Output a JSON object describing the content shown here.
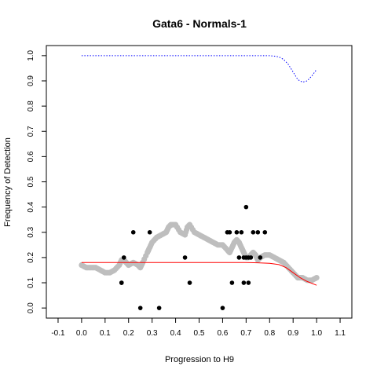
{
  "chart_data": {
    "type": "scatter",
    "title": "Gata6 - Normals-1",
    "xlabel": "Progression to H9",
    "ylabel": "Frequency of Detection",
    "xlim": [
      -0.15,
      1.15
    ],
    "ylim": [
      -0.04,
      1.04
    ],
    "x_ticks": [
      -0.1,
      0.0,
      0.1,
      0.2,
      0.3,
      0.4,
      0.5,
      0.6,
      0.7,
      0.8,
      0.9,
      1.0,
      1.1
    ],
    "x_tick_labels": [
      "-0.1",
      "0.0",
      "0.1",
      "0.2",
      "0.3",
      "0.4",
      "0.5",
      "0.6",
      "0.7",
      "0.8",
      "0.9",
      "1.0",
      "1.1"
    ],
    "y_ticks": [
      0.0,
      0.1,
      0.2,
      0.3,
      0.4,
      0.5,
      0.6,
      0.7,
      0.8,
      0.9,
      1.0
    ],
    "y_tick_labels": [
      "0.0",
      "0.1",
      "0.2",
      "0.3",
      "0.4",
      "0.5",
      "0.6",
      "0.7",
      "0.8",
      "0.9",
      "1.0"
    ],
    "grid": false,
    "colors": {
      "observed": "#000000",
      "smoothed": "#bebebe",
      "fit": "#ff0000",
      "upper": "#0000ff"
    },
    "series": [
      {
        "kind": "points",
        "color": "#000000",
        "x": [
          0.17,
          0.17,
          0.18,
          0.22,
          0.25,
          0.29,
          0.33,
          0.44,
          0.46,
          0.6,
          0.62,
          0.63,
          0.64,
          0.66,
          0.67,
          0.68,
          0.69,
          0.69,
          0.7,
          0.7,
          0.71,
          0.71,
          0.72,
          0.73,
          0.75,
          0.76,
          0.78
        ],
        "y": [
          0.1,
          0.1,
          0.2,
          0.3,
          0.0,
          0.3,
          0.0,
          0.2,
          0.1,
          0.0,
          0.3,
          0.3,
          0.1,
          0.3,
          0.2,
          0.3,
          0.1,
          0.2,
          0.2,
          0.4,
          0.1,
          0.2,
          0.2,
          0.3,
          0.3,
          0.2,
          0.3
        ]
      },
      {
        "kind": "smoothed",
        "color": "#bebebe",
        "x": [
          0.0,
          0.02,
          0.04,
          0.06,
          0.08,
          0.1,
          0.12,
          0.14,
          0.16,
          0.17,
          0.18,
          0.19,
          0.2,
          0.22,
          0.24,
          0.25,
          0.26,
          0.28,
          0.29,
          0.3,
          0.32,
          0.34,
          0.36,
          0.37,
          0.38,
          0.4,
          0.42,
          0.44,
          0.45,
          0.46,
          0.48,
          0.5,
          0.52,
          0.54,
          0.56,
          0.58,
          0.6,
          0.62,
          0.63,
          0.64,
          0.65,
          0.66,
          0.67,
          0.68,
          0.69,
          0.7,
          0.71,
          0.72,
          0.73,
          0.74,
          0.75,
          0.76,
          0.78,
          0.8,
          0.82,
          0.84,
          0.86,
          0.88,
          0.9,
          0.92,
          0.94,
          0.96,
          0.98,
          1.0
        ],
        "y": [
          0.17,
          0.16,
          0.16,
          0.16,
          0.15,
          0.14,
          0.14,
          0.15,
          0.17,
          0.19,
          0.19,
          0.18,
          0.17,
          0.18,
          0.17,
          0.16,
          0.18,
          0.22,
          0.24,
          0.26,
          0.28,
          0.29,
          0.3,
          0.32,
          0.33,
          0.33,
          0.3,
          0.29,
          0.32,
          0.33,
          0.3,
          0.29,
          0.28,
          0.27,
          0.26,
          0.25,
          0.25,
          0.23,
          0.22,
          0.24,
          0.26,
          0.27,
          0.26,
          0.24,
          0.22,
          0.2,
          0.2,
          0.21,
          0.22,
          0.21,
          0.19,
          0.2,
          0.21,
          0.21,
          0.2,
          0.19,
          0.18,
          0.16,
          0.14,
          0.12,
          0.12,
          0.11,
          0.11,
          0.12
        ]
      },
      {
        "kind": "fit",
        "color": "#ff0000",
        "x": [
          0.0,
          0.1,
          0.2,
          0.3,
          0.4,
          0.5,
          0.6,
          0.7,
          0.75,
          0.8,
          0.84,
          0.87,
          0.9,
          0.93,
          0.96,
          1.0
        ],
        "y": [
          0.18,
          0.18,
          0.18,
          0.18,
          0.18,
          0.18,
          0.18,
          0.18,
          0.179,
          0.177,
          0.172,
          0.16,
          0.14,
          0.12,
          0.105,
          0.09
        ]
      },
      {
        "kind": "upper",
        "color": "#0000ff",
        "x": [
          0.0,
          0.1,
          0.2,
          0.3,
          0.4,
          0.5,
          0.6,
          0.7,
          0.8,
          0.82,
          0.84,
          0.86,
          0.88,
          0.9,
          0.92,
          0.94,
          0.96,
          0.98,
          1.0
        ],
        "y": [
          1.0,
          1.0,
          1.0,
          1.0,
          1.0,
          1.0,
          1.0,
          1.0,
          1.0,
          0.998,
          0.995,
          0.985,
          0.965,
          0.935,
          0.905,
          0.895,
          0.9,
          0.92,
          0.945
        ]
      }
    ]
  }
}
